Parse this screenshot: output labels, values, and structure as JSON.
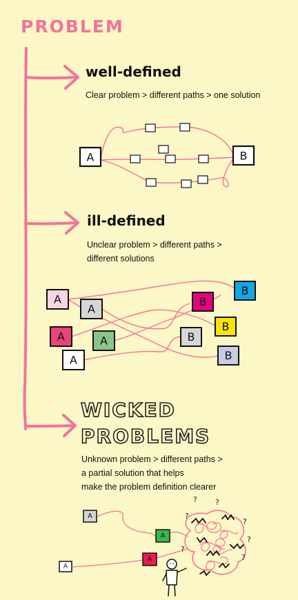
{
  "title": "PROBLEM",
  "sections": [
    {
      "title": "well-defined",
      "description": "Clear problem > different paths > one solution"
    },
    {
      "title": "ill-defined",
      "description_lines": [
        "Unclear problem > different paths >",
        "different solutions"
      ]
    },
    {
      "title_lines": [
        "WICKED",
        "PROBLEMS"
      ],
      "description_lines": [
        "Unknown problem > different paths >",
        "a partial solution that helps",
        "make the problem definition clearer"
      ]
    }
  ],
  "node_labels": {
    "start": "A",
    "end": "B"
  },
  "question_mark": "?",
  "colors": {
    "accent_pink": "#f2739b",
    "background": "#fbf7c6",
    "box_light_pink": "#f6d6e2",
    "box_gray": "#d6d6d6",
    "box_pink": "#e7457a",
    "box_green": "#8bc48a",
    "box_magenta": "#e2047f",
    "box_cyan": "#14a6e6",
    "box_yellow": "#fde400",
    "box_lavender": "#c9cce6",
    "box_bright_green": "#3bb64a",
    "box_red": "#ea1d50"
  }
}
